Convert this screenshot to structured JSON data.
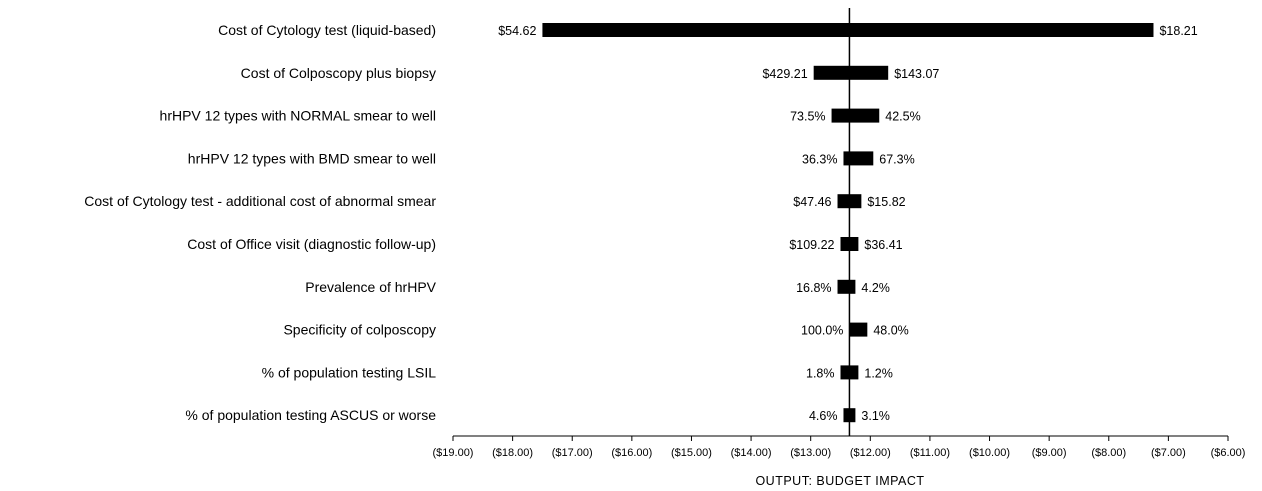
{
  "chart_data": {
    "type": "bar",
    "subtype": "tornado",
    "title": "",
    "xlabel": "OUTPUT:  BUDGET  IMPACT",
    "ylabel": "",
    "xlim": [
      -19,
      -6
    ],
    "baseline": -12.35,
    "xticks": [
      -19,
      -18,
      -17,
      -16,
      -15,
      -14,
      -13,
      -12,
      -11,
      -10,
      -9,
      -8,
      -7,
      -6
    ],
    "xtick_labels": [
      "($19.00)",
      "($18.00)",
      "($17.00)",
      "($16.00)",
      "($15.00)",
      "($14.00)",
      "($13.00)",
      "($12.00)",
      "($11.00)",
      "($10.00)",
      "($9.00)",
      "($8.00)",
      "($7.00)",
      "($6.00)"
    ],
    "bar_color": "#000000",
    "categories": [
      "Cost of Cytology test (liquid-based)",
      "Cost of Colposcopy plus biopsy",
      "hrHPV 12 types with NORMAL smear to well",
      "hrHPV 12 types with BMD smear to well",
      "Cost of Cytology test  - additional cost of abnormal smear",
      "Cost of Office visit (diagnostic follow-up)",
      "Prevalence of hrHPV",
      "Specificity of colposcopy",
      "% of population testing LSIL",
      "% of population testing ASCUS or worse"
    ],
    "low_values": [
      -17.5,
      -12.95,
      -12.65,
      -12.45,
      -12.55,
      -12.5,
      -12.55,
      -12.35,
      -12.5,
      -12.45
    ],
    "high_values": [
      -7.25,
      -11.7,
      -11.85,
      -11.95,
      -12.15,
      -12.2,
      -12.25,
      -12.05,
      -12.2,
      -12.25
    ],
    "left_labels": [
      "$54.62",
      "$429.21",
      "73.5%",
      "36.3%",
      "$47.46",
      "$109.22",
      "16.8%",
      "100.0%",
      "1.8%",
      "4.6%"
    ],
    "right_labels": [
      "$18.21",
      "$143.07",
      "42.5%",
      "67.3%",
      "$15.82",
      "$36.41",
      "4.2%",
      "48.0%",
      "1.2%",
      "3.1%"
    ]
  }
}
